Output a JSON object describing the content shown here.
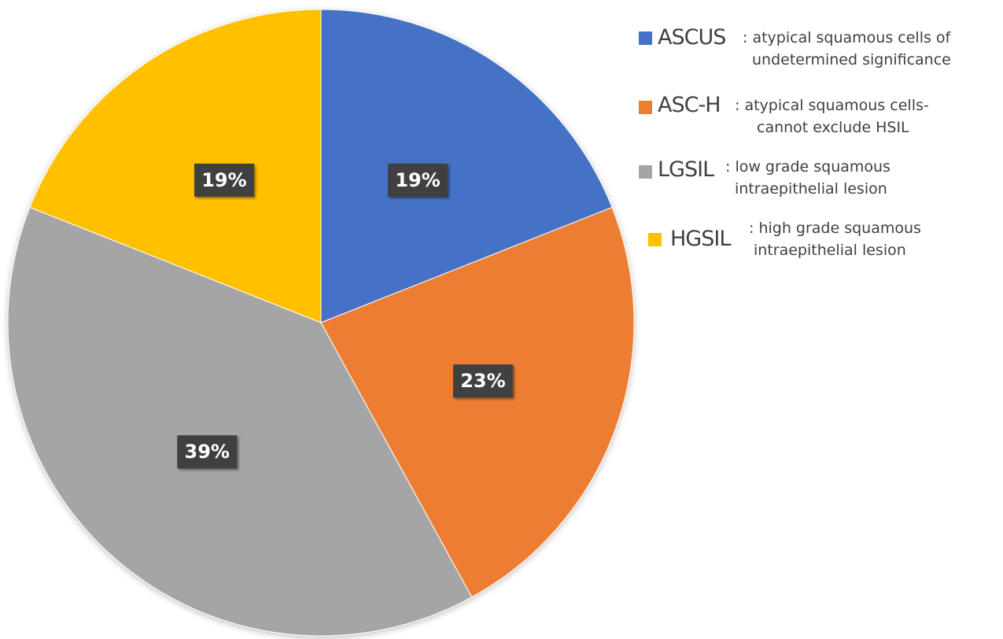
{
  "chart_data": {
    "type": "pie",
    "categories": [
      "ASCUS",
      "ASC-H",
      "LGSIL",
      "HGSIL"
    ],
    "values": [
      19,
      23,
      39,
      19
    ],
    "value_labels": [
      "19%",
      "23%",
      "39%",
      "19%"
    ],
    "colors": [
      "#4472C4",
      "#ED7D31",
      "#A5A5A5",
      "#FFC000"
    ],
    "start_angle_deg": 0,
    "direction": "clockwise",
    "legend_position": "right"
  },
  "legend": [
    {
      "abbr": "ASCUS",
      "line1": ": atypical squamous cells of",
      "line2": "undetermined significance",
      "color": "#4472C4"
    },
    {
      "abbr": "ASC-H",
      "line1": ": atypical squamous cells-",
      "line2": "cannot exclude HSIL",
      "color": "#ED7D31"
    },
    {
      "abbr": "LGSIL",
      "line1": ": low grade squamous",
      "line2": "intraepithelial lesion",
      "color": "#A5A5A5"
    },
    {
      "abbr": "HGSIL",
      "line1": ": high grade squamous",
      "line2": "intraepithelial lesion",
      "color": "#FFC000"
    }
  ]
}
